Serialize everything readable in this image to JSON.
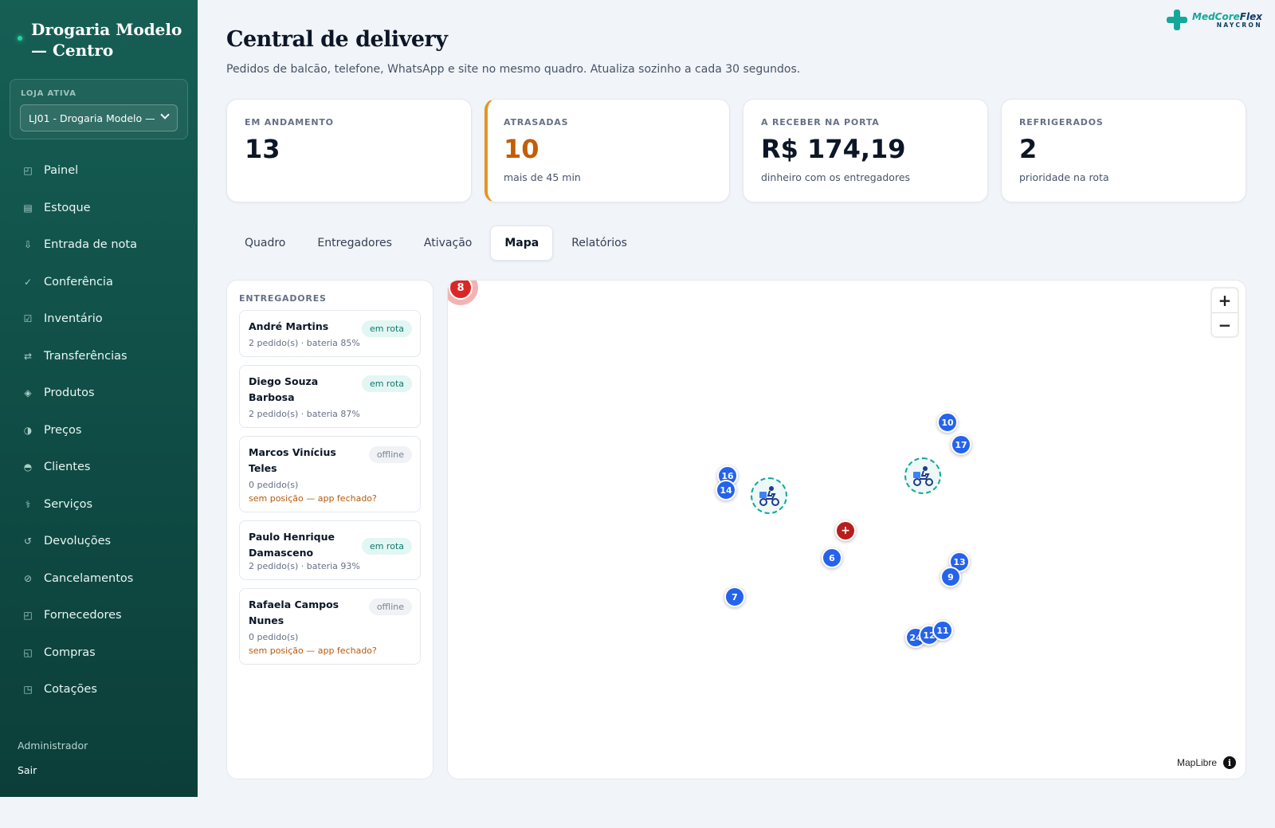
{
  "sidebar": {
    "brand": "Drogaria Modelo — Centro",
    "store_label": "LOJA ATIVA",
    "store_selected": "LJ01 - Drogaria Modelo —",
    "items": [
      {
        "label": "Painel",
        "icon": "◰"
      },
      {
        "label": "Estoque",
        "icon": "▤"
      },
      {
        "label": "Entrada de nota",
        "icon": "⇩"
      },
      {
        "label": "Conferência",
        "icon": "✓"
      },
      {
        "label": "Inventário",
        "icon": "☑"
      },
      {
        "label": "Transferências",
        "icon": "⇄"
      },
      {
        "label": "Produtos",
        "icon": "◈"
      },
      {
        "label": "Preços",
        "icon": "◑"
      },
      {
        "label": "Clientes",
        "icon": "◓"
      },
      {
        "label": "Serviços",
        "icon": "⚕"
      },
      {
        "label": "Devoluções",
        "icon": "↺"
      },
      {
        "label": "Cancelamentos",
        "icon": "⊘"
      },
      {
        "label": "Fornecedores",
        "icon": "◰"
      },
      {
        "label": "Compras",
        "icon": "◱"
      },
      {
        "label": "Cotações",
        "icon": "◳"
      }
    ],
    "user": "Administrador",
    "logout": "Sair"
  },
  "logo": {
    "main_a": "MedCore",
    "main_b": "Flex",
    "sub": "NAYCRON"
  },
  "header": {
    "title": "Central de delivery",
    "subtitle": "Pedidos de balcão, telefone, WhatsApp e site no mesmo quadro. Atualiza sozinho a cada 30 segundos."
  },
  "kpis": [
    {
      "label": "EM ANDAMENTO",
      "value": "13",
      "note": ""
    },
    {
      "label": "ATRASADAS",
      "value": "10",
      "note": "mais de 45 min"
    },
    {
      "label": "A RECEBER NA PORTA",
      "value": "R$ 174,19",
      "note": "dinheiro com os entregadores"
    },
    {
      "label": "REFRIGERADOS",
      "value": "2",
      "note": "prioridade na rota"
    }
  ],
  "tabs": [
    "Quadro",
    "Entregadores",
    "Ativação",
    "Mapa",
    "Relatórios"
  ],
  "active_tab": "Mapa",
  "couriers": {
    "title": "ENTREGADORES",
    "list": [
      {
        "name": "André Martins",
        "status": "em rota",
        "meta": "2 pedido(s) · bateria 85%",
        "warning": ""
      },
      {
        "name": "Diego Souza Barbosa",
        "status": "em rota",
        "meta": "2 pedido(s) · bateria 87%",
        "warning": ""
      },
      {
        "name": "Marcos Vinícius Teles",
        "status": "offline",
        "meta": "0 pedido(s)",
        "warning": "sem posição — app fechado?"
      },
      {
        "name": "Paulo Henrique Damasceno",
        "status": "em rota",
        "meta": "2 pedido(s) · bateria 93%",
        "warning": ""
      },
      {
        "name": "Rafaela Campos Nunes",
        "status": "offline",
        "meta": "0 pedido(s)",
        "warning": "sem posição — app fechado?"
      }
    ]
  },
  "map": {
    "cluster_count": "8",
    "store_symbol": "+",
    "orders": [
      "16",
      "14",
      "10",
      "17",
      "6",
      "13",
      "9",
      "7",
      "24",
      "12",
      "11"
    ],
    "zoom_in": "+",
    "zoom_out": "−",
    "attribution": "MapLibre",
    "info": "i"
  },
  "colors": {
    "sidebar": "#165f55",
    "accent": "#14a89a",
    "warning": "#c25e07",
    "marker": "#2563eb",
    "store_marker": "#b91c1c"
  }
}
